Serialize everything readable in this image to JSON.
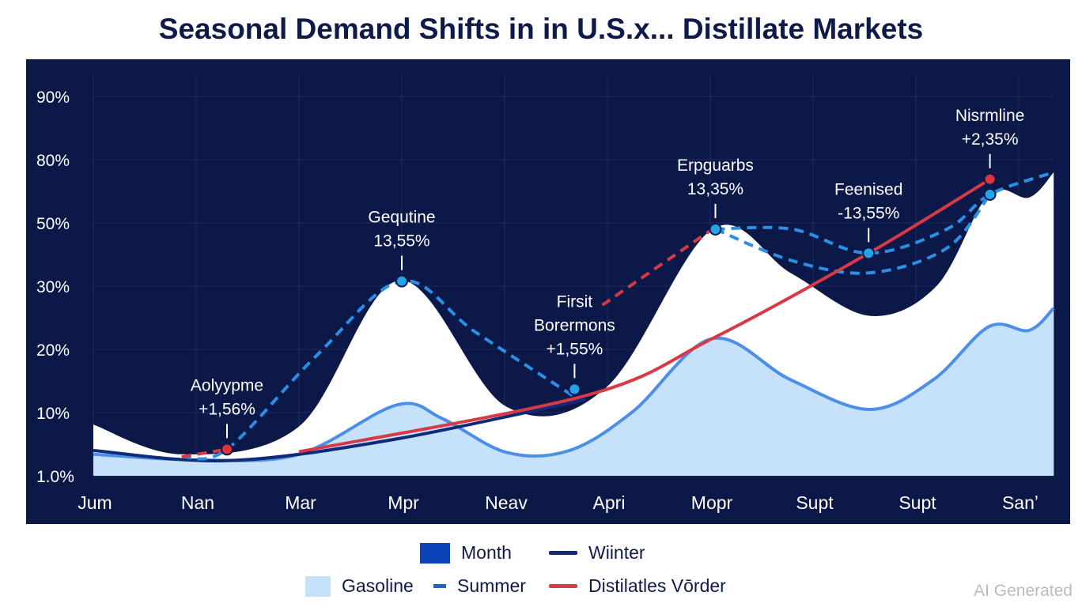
{
  "chart_data": {
    "type": "area",
    "title": "Seasonal Demand Shifts in in U.S.х... Distillate Markets",
    "xlabel": "",
    "ylabel": "",
    "x_ticks": [
      "Jum",
      "Nan",
      "Mar",
      "Mpr",
      "Neav",
      "Apri",
      "Mopr",
      "Supt",
      "Supt",
      "Sanʼ"
    ],
    "y_ticks": [
      "1.0%",
      "10%",
      "20%",
      "30%",
      "50%",
      "80%",
      "90%"
    ],
    "y_units_note": "y values are in tick-index units (0 = 1.0%, 6 = 90%)",
    "grid": true,
    "legend_position": "bottom",
    "series": [
      {
        "name": "Month",
        "kind": "area",
        "color": "#ffffff",
        "points": [
          [
            0,
            0.81
          ],
          [
            0.86,
            0.34
          ],
          [
            2,
            0.78
          ],
          [
            2.98,
            3.09
          ],
          [
            4.02,
            1.09
          ],
          [
            4.99,
            1.4
          ],
          [
            6.02,
            3.9
          ],
          [
            6.78,
            3.21
          ],
          [
            7.55,
            2.53
          ],
          [
            8.2,
            3.0
          ],
          [
            8.71,
            4.45
          ],
          [
            9.1,
            4.4
          ],
          [
            9.34,
            4.8
          ]
        ]
      },
      {
        "name": "Gasoline",
        "kind": "area",
        "color": "#c6e2fb",
        "line": "#4d8fe8",
        "points": [
          [
            0,
            0.34
          ],
          [
            1.02,
            0.25
          ],
          [
            2,
            0.34
          ],
          [
            2.95,
            1.12
          ],
          [
            3.4,
            0.9
          ],
          [
            4.02,
            0.37
          ],
          [
            4.63,
            0.4
          ],
          [
            5.25,
            1.02
          ],
          [
            6.02,
            2.17
          ],
          [
            6.78,
            1.52
          ],
          [
            7.55,
            1.05
          ],
          [
            8.17,
            1.52
          ],
          [
            8.71,
            2.36
          ],
          [
            9.1,
            2.3
          ],
          [
            9.34,
            2.65
          ]
        ]
      },
      {
        "name": "Wiinter",
        "kind": "line",
        "color": "#0f2a78",
        "points": [
          [
            0,
            0.4
          ],
          [
            1.32,
            0.24
          ],
          [
            2.94,
            0.58
          ],
          [
            4.79,
            1.21
          ]
        ]
      },
      {
        "name": "Summer",
        "kind": "dashed",
        "color": "#2b8fe6",
        "points": [
          [
            0.86,
            0.3
          ],
          [
            1.3,
            0.42
          ],
          [
            2.17,
            1.9
          ],
          [
            3,
            3.08
          ],
          [
            3.71,
            2.28
          ],
          [
            4.68,
            1.25
          ]
        ]
      },
      {
        "name": "Summer (upper)",
        "kind": "dashed",
        "color": "#2b8fe6",
        "points": [
          [
            6.05,
            3.9
          ],
          [
            6.8,
            3.9
          ],
          [
            7.54,
            3.52
          ],
          [
            8.3,
            3.9
          ],
          [
            8.72,
            4.45
          ],
          [
            9.34,
            4.8
          ]
        ]
      },
      {
        "name": "Summer (lower)",
        "kind": "dashed",
        "color": "#2b8fe6",
        "points": [
          [
            6.05,
            3.9
          ],
          [
            6.8,
            3.4
          ],
          [
            7.55,
            3.21
          ],
          [
            8.3,
            3.6
          ],
          [
            8.72,
            4.45
          ]
        ]
      },
      {
        "name": "Distilatles Vōrder",
        "kind": "line",
        "color": "#d83a45",
        "points": [
          [
            2,
            0.38
          ],
          [
            4.79,
            1.27
          ],
          [
            6.02,
            2.17
          ],
          [
            7.54,
            3.52
          ],
          [
            8.72,
            4.69
          ]
        ]
      },
      {
        "name": "Distilatles Vōrder (dashed)",
        "kind": "dashed",
        "color": "#d83a45",
        "points": [
          [
            0.86,
            0.3
          ],
          [
            1.3,
            0.42
          ]
        ]
      },
      {
        "name": "Distilatles Vōrder (dashed 2)",
        "kind": "dashed",
        "color": "#d83a45",
        "points": [
          [
            4.95,
            2.7
          ],
          [
            6.02,
            3.9
          ]
        ]
      }
    ],
    "markers": [
      {
        "x": 1.3,
        "y": 0.42,
        "color": "#e0323f"
      },
      {
        "x": 8.72,
        "y": 4.69,
        "color": "#e0323f"
      },
      {
        "x": 3,
        "y": 3.08,
        "color": "#25a3e8"
      },
      {
        "x": 4.68,
        "y": 1.37,
        "color": "#25a3e8"
      },
      {
        "x": 6.05,
        "y": 3.9,
        "color": "#25a3e8"
      },
      {
        "x": 7.54,
        "y": 3.52,
        "color": "#25a3e8"
      },
      {
        "x": 8.72,
        "y": 4.45,
        "color": "#25a3e8"
      }
    ],
    "annotations": [
      {
        "x": 1.3,
        "y": 0.42,
        "lines": [
          "Aolyypme",
          "+1,56%"
        ]
      },
      {
        "x": 3,
        "y": 3.08,
        "lines": [
          "Gequtine",
          "13,55%"
        ]
      },
      {
        "x": 4.68,
        "y": 1.37,
        "lines": [
          "Firsit",
          "Borermons",
          "+1,55%"
        ]
      },
      {
        "x": 6.05,
        "y": 3.9,
        "lines": [
          "Erpguarbs",
          "13,35%"
        ]
      },
      {
        "x": 7.54,
        "y": 3.52,
        "lines": [
          "Feenised",
          "-13,55%"
        ]
      },
      {
        "x": 8.72,
        "y": 4.69,
        "lines": [
          "Nisrmline",
          "+2,35%"
        ]
      }
    ],
    "legend": [
      {
        "label": "Month",
        "type": "box",
        "color": "#0a44b8"
      },
      {
        "label": "Wiinter",
        "type": "line",
        "color": "#0f2a78"
      },
      {
        "label": "Gasoline",
        "type": "box",
        "color": "#c6e2fb"
      },
      {
        "label": "Summer",
        "type": "short",
        "color": "#1f63cc"
      },
      {
        "label": "Distilatles Vōrder",
        "type": "line",
        "color": "#d83a45"
      }
    ]
  },
  "watermark": "AI Generated"
}
